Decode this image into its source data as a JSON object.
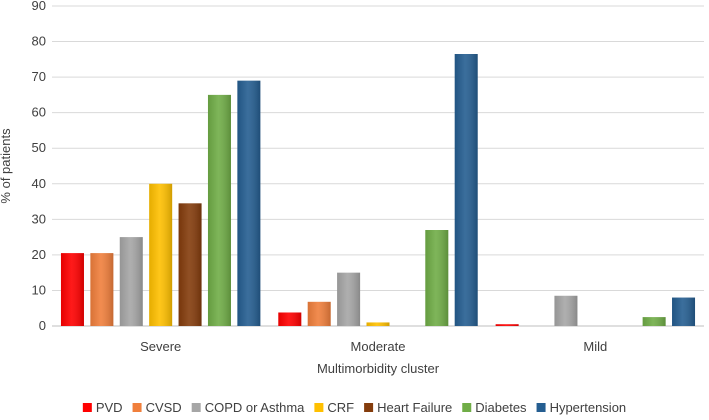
{
  "chart_data": {
    "type": "bar",
    "title": "",
    "xlabel": "Multimorbidity cluster",
    "ylabel": "% of patients",
    "ylim": [
      0,
      90
    ],
    "yticks": [
      "0",
      "10",
      "20",
      "30",
      "40",
      "50",
      "60",
      "70",
      "80",
      "90"
    ],
    "grid": true,
    "legend_position": "bottom",
    "categories": [
      "Severe",
      "Moderate",
      "Mild"
    ],
    "series": [
      {
        "name": "PVD",
        "color": "#ff0000",
        "values": [
          20.5,
          3.8,
          0.5
        ]
      },
      {
        "name": "CVSD",
        "color": "#f07f3c",
        "values": [
          20.5,
          6.8,
          0
        ]
      },
      {
        "name": "COPD or Asthma",
        "color": "#a6a6a6",
        "values": [
          25,
          15,
          8.5
        ]
      },
      {
        "name": "CRF",
        "color": "#ffc000",
        "values": [
          40,
          1,
          0
        ]
      },
      {
        "name": "Heart Failure",
        "color": "#843c0c",
        "values": [
          34.5,
          0,
          0
        ]
      },
      {
        "name": "Diabetes",
        "color": "#70ad47",
        "values": [
          65,
          27,
          2.5
        ]
      },
      {
        "name": "Hypertension",
        "color": "#255e91",
        "values": [
          69,
          76.5,
          8
        ]
      }
    ]
  }
}
